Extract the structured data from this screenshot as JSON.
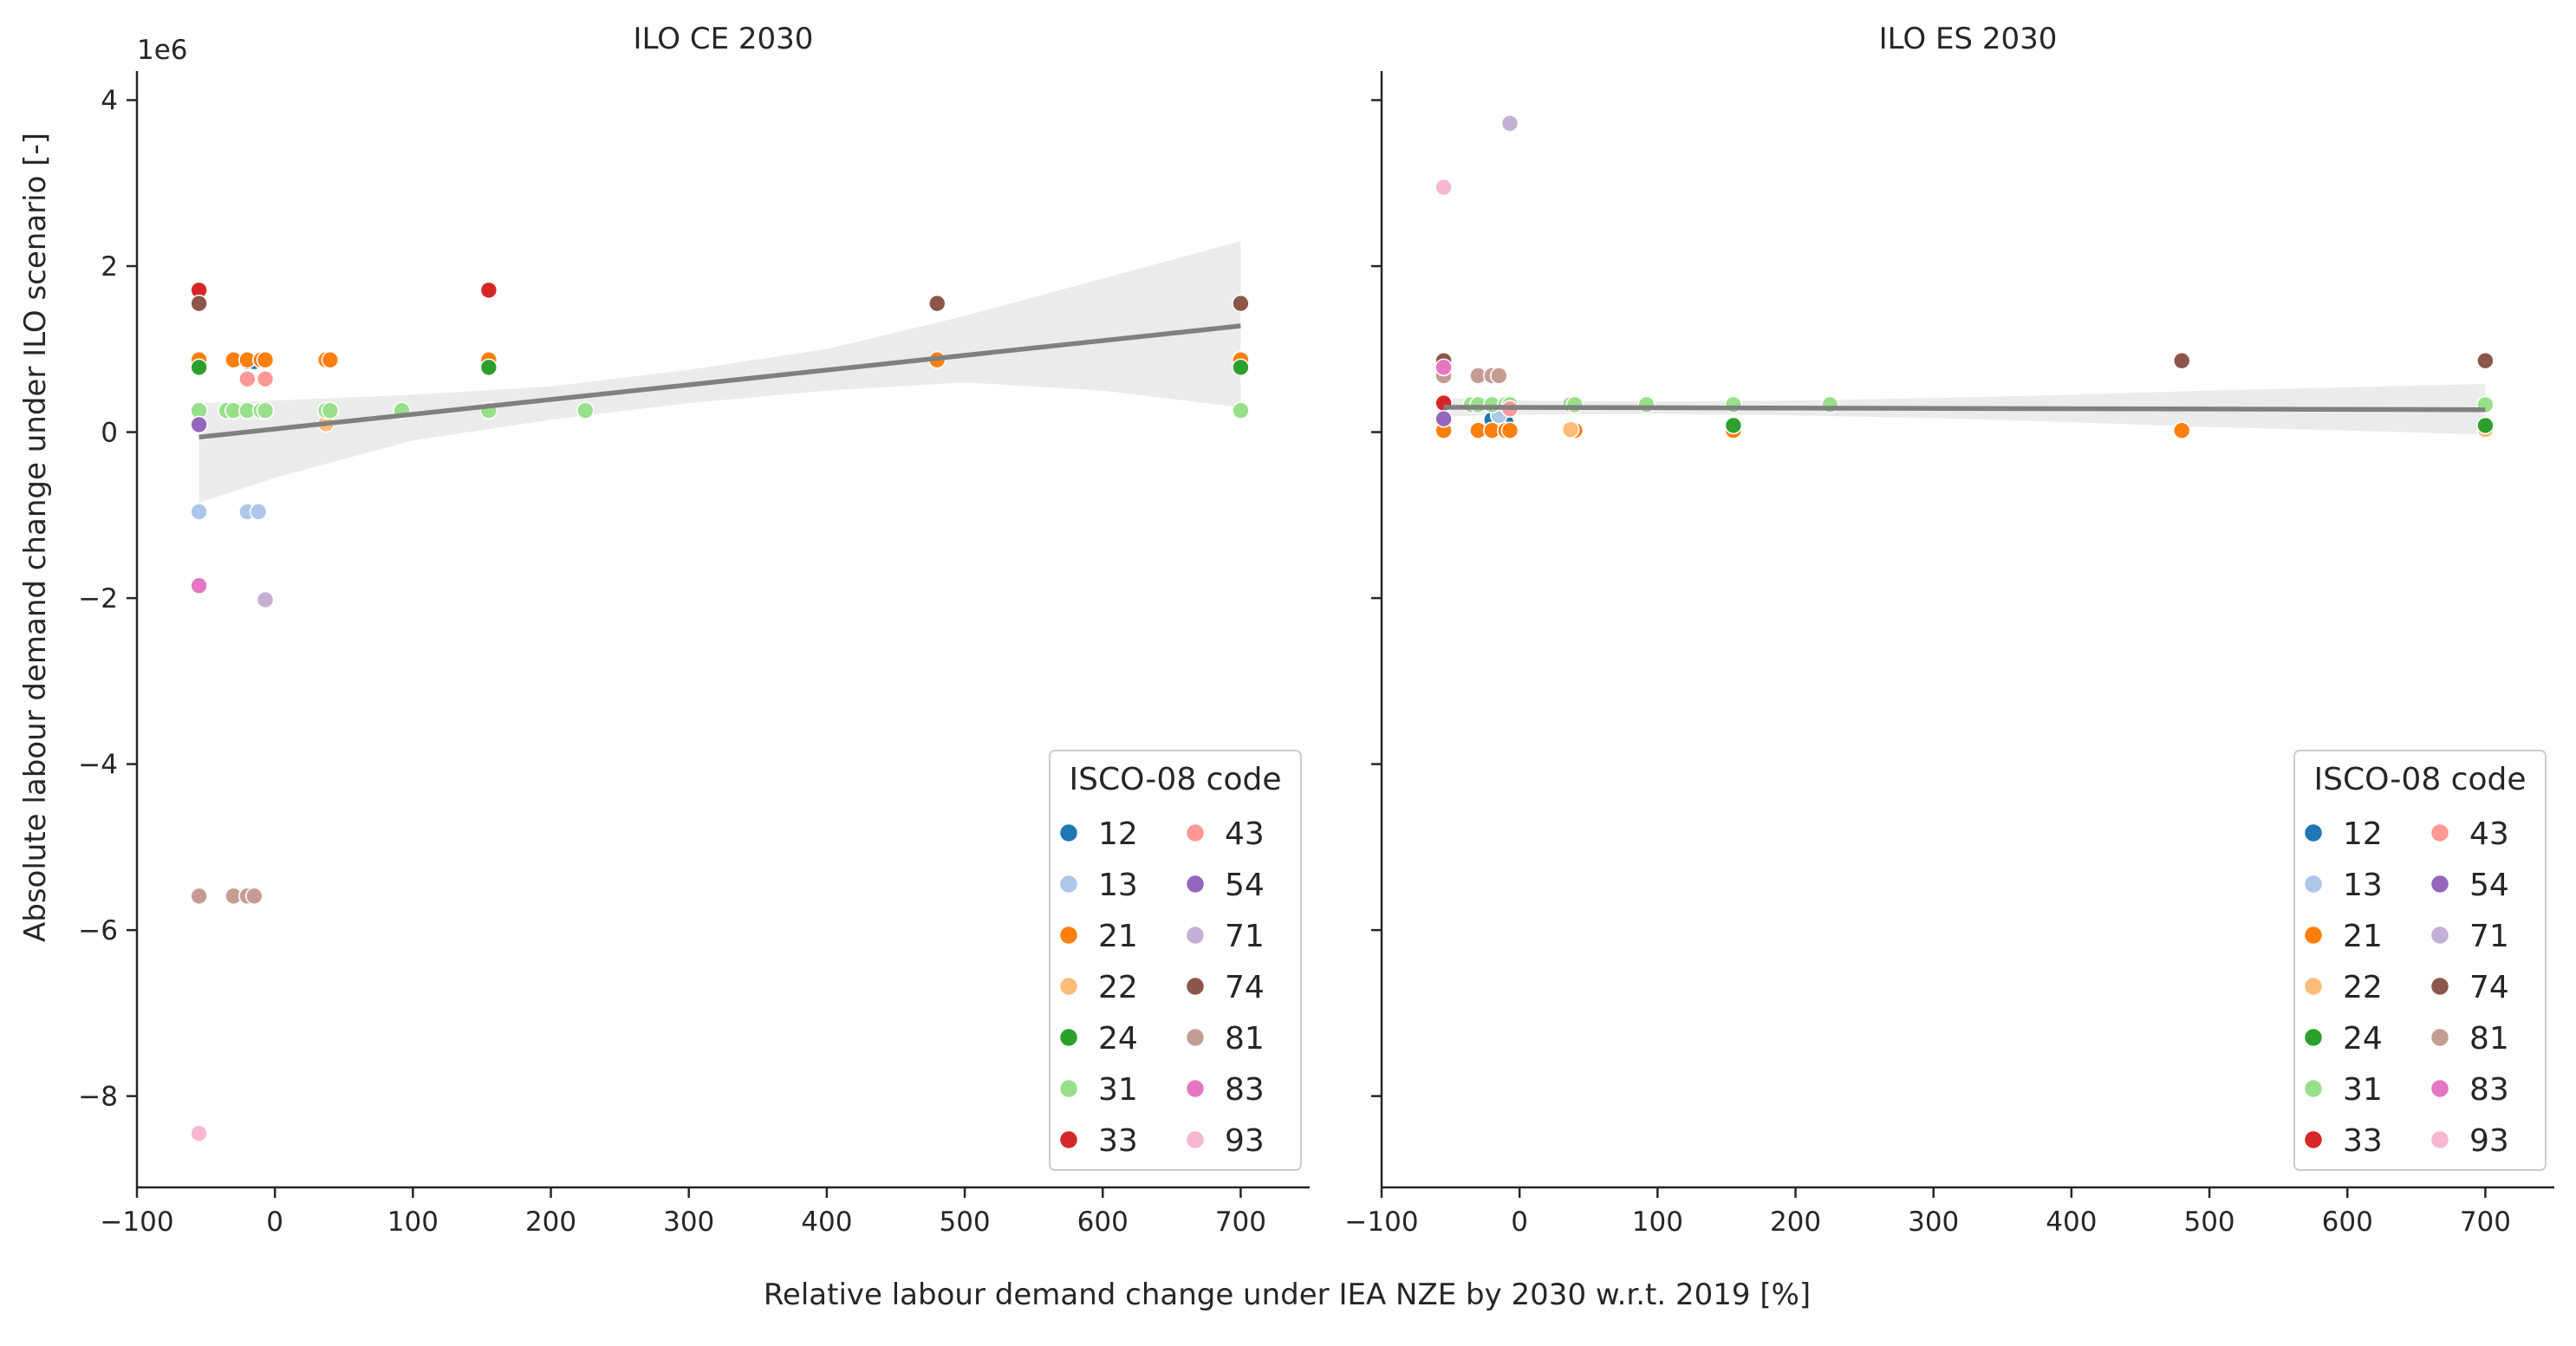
{
  "figure": {
    "xlabel": "Relative labour demand change under IEA NZE by 2030 w.r.t. 2019 [%]",
    "ylabel": "Absolute labour demand change under ILO scenario [-]",
    "y_offset_label": "1e6"
  },
  "colors": {
    "12": "#1f77b4",
    "13": "#aec7e8",
    "21": "#ff7f0e",
    "22": "#ffbb78",
    "24": "#2ca02c",
    "31": "#98df8a",
    "33": "#d62728",
    "43": "#ff9896",
    "54": "#9467bd",
    "71": "#c5b0d5",
    "74": "#8c564b",
    "81": "#c49c94",
    "83": "#e377c2",
    "93": "#f7b6d2",
    "regression": "#808080",
    "ci_band": "#ebebeb"
  },
  "chart_data": [
    {
      "type": "scatter",
      "title": "ILO CE 2030",
      "xlim": [
        -100,
        750
      ],
      "ylim": [
        -9.1,
        4.35
      ],
      "y_scale": "1e6",
      "xticks": [
        -100,
        0,
        100,
        200,
        300,
        400,
        500,
        600,
        700
      ],
      "yticks": [
        -8,
        -6,
        -4,
        -2,
        0,
        2,
        4
      ],
      "grid": false,
      "legend": {
        "title": "ISCO-08 code",
        "placement": "lower-right",
        "columns": [
          [
            "12",
            "13",
            "21",
            "22",
            "24",
            "31",
            "33"
          ],
          [
            "43",
            "54",
            "71",
            "74",
            "81",
            "83",
            "93"
          ]
        ]
      },
      "regression": {
        "x": [
          -55,
          700
        ],
        "y": [
          -0.06,
          1.28
        ]
      },
      "ci_band": {
        "x": [
          -55,
          0,
          100,
          200,
          300,
          400,
          500,
          600,
          700
        ],
        "lower": [
          -0.85,
          -0.55,
          -0.1,
          0.15,
          0.35,
          0.5,
          0.6,
          0.5,
          0.3
        ],
        "upper": [
          0.35,
          0.38,
          0.45,
          0.55,
          0.75,
          1.0,
          1.4,
          1.85,
          2.3
        ]
      },
      "series": [
        {
          "name": "12",
          "points": [
            [
              -20,
              0.85
            ],
            [
              -15,
              0.85
            ]
          ]
        },
        {
          "name": "13",
          "points": [
            [
              -55,
              -0.96
            ],
            [
              -20,
              -0.96
            ],
            [
              -12,
              -0.96
            ]
          ]
        },
        {
          "name": "21",
          "points": [
            [
              -55,
              0.87
            ],
            [
              -30,
              0.87
            ],
            [
              -20,
              0.87
            ],
            [
              -10,
              0.87
            ],
            [
              -7,
              0.87
            ],
            [
              37,
              0.87
            ],
            [
              40,
              0.87
            ],
            [
              155,
              0.87
            ],
            [
              480,
              0.87
            ],
            [
              700,
              0.87
            ]
          ]
        },
        {
          "name": "22",
          "points": [
            [
              37,
              0.1
            ]
          ]
        },
        {
          "name": "24",
          "points": [
            [
              -55,
              0.78
            ],
            [
              155,
              0.78
            ],
            [
              700,
              0.78
            ]
          ]
        },
        {
          "name": "31",
          "points": [
            [
              -55,
              0.26
            ],
            [
              -35,
              0.26
            ],
            [
              -30,
              0.26
            ],
            [
              -20,
              0.26
            ],
            [
              -10,
              0.26
            ],
            [
              -7,
              0.26
            ],
            [
              37,
              0.26
            ],
            [
              40,
              0.26
            ],
            [
              92,
              0.26
            ],
            [
              155,
              0.26
            ],
            [
              225,
              0.26
            ],
            [
              700,
              0.26
            ]
          ]
        },
        {
          "name": "33",
          "points": [
            [
              -55,
              1.71
            ],
            [
              155,
              1.71
            ]
          ]
        },
        {
          "name": "43",
          "points": [
            [
              -20,
              0.64
            ],
            [
              -7,
              0.64
            ]
          ]
        },
        {
          "name": "54",
          "points": [
            [
              -55,
              0.09
            ]
          ]
        },
        {
          "name": "71",
          "points": [
            [
              -7,
              -2.02
            ]
          ]
        },
        {
          "name": "74",
          "points": [
            [
              -55,
              1.55
            ],
            [
              480,
              1.55
            ],
            [
              700,
              1.55
            ]
          ]
        },
        {
          "name": "81",
          "points": [
            [
              -55,
              -5.59
            ],
            [
              -30,
              -5.59
            ],
            [
              -20,
              -5.59
            ],
            [
              -15,
              -5.59
            ]
          ]
        },
        {
          "name": "83",
          "points": [
            [
              -55,
              -1.85
            ]
          ]
        },
        {
          "name": "93",
          "points": [
            [
              -55,
              -8.45
            ]
          ]
        }
      ]
    },
    {
      "type": "scatter",
      "title": "ILO ES 2030",
      "xlim": [
        -100,
        750
      ],
      "ylim": [
        -9.1,
        4.35
      ],
      "y_scale": "1e6",
      "xticks": [
        -100,
        0,
        100,
        200,
        300,
        400,
        500,
        600,
        700
      ],
      "yticks": [
        -8,
        -6,
        -4,
        -2,
        0,
        2,
        4
      ],
      "grid": false,
      "legend": {
        "title": "ISCO-08 code",
        "placement": "lower-right",
        "columns": [
          [
            "12",
            "13",
            "21",
            "22",
            "24",
            "31",
            "33"
          ],
          [
            "43",
            "54",
            "71",
            "74",
            "81",
            "83",
            "93"
          ]
        ]
      },
      "regression": {
        "x": [
          -55,
          700
        ],
        "y": [
          0.3,
          0.27
        ]
      },
      "ci_band": {
        "x": [
          -55,
          0,
          100,
          200,
          300,
          400,
          500,
          600,
          700
        ],
        "lower": [
          0.19,
          0.21,
          0.22,
          0.2,
          0.17,
          0.12,
          0.06,
          0.02,
          -0.03
        ],
        "upper": [
          0.41,
          0.38,
          0.37,
          0.38,
          0.41,
          0.45,
          0.5,
          0.54,
          0.58
        ]
      },
      "series": [
        {
          "name": "12",
          "points": [
            [
              -20,
              0.15
            ],
            [
              -10,
              0.12
            ]
          ]
        },
        {
          "name": "13",
          "points": [
            [
              -15,
              0.2
            ]
          ]
        },
        {
          "name": "21",
          "points": [
            [
              -55,
              0.02
            ],
            [
              -30,
              0.02
            ],
            [
              -20,
              0.02
            ],
            [
              -10,
              0.02
            ],
            [
              -7,
              0.02
            ],
            [
              40,
              0.02
            ],
            [
              155,
              0.02
            ],
            [
              480,
              0.02
            ],
            [
              700,
              0.02
            ]
          ]
        },
        {
          "name": "22",
          "points": [
            [
              37,
              0.03
            ],
            [
              700,
              0.03
            ]
          ]
        },
        {
          "name": "24",
          "points": [
            [
              155,
              0.08
            ],
            [
              700,
              0.08
            ]
          ]
        },
        {
          "name": "31",
          "points": [
            [
              -55,
              0.33
            ],
            [
              -35,
              0.33
            ],
            [
              -30,
              0.33
            ],
            [
              -20,
              0.33
            ],
            [
              -10,
              0.33
            ],
            [
              -7,
              0.33
            ],
            [
              37,
              0.33
            ],
            [
              40,
              0.33
            ],
            [
              92,
              0.33
            ],
            [
              155,
              0.33
            ],
            [
              225,
              0.33
            ],
            [
              700,
              0.33
            ]
          ]
        },
        {
          "name": "33",
          "points": [
            [
              -55,
              0.35
            ]
          ]
        },
        {
          "name": "43",
          "points": [
            [
              -7,
              0.28
            ]
          ]
        },
        {
          "name": "54",
          "points": [
            [
              -55,
              0.16
            ]
          ]
        },
        {
          "name": "71",
          "points": [
            [
              -7,
              3.72
            ]
          ]
        },
        {
          "name": "74",
          "points": [
            [
              -55,
              0.86
            ],
            [
              480,
              0.86
            ],
            [
              700,
              0.86
            ]
          ]
        },
        {
          "name": "81",
          "points": [
            [
              -55,
              0.68
            ],
            [
              -30,
              0.68
            ],
            [
              -20,
              0.68
            ],
            [
              -15,
              0.68
            ]
          ]
        },
        {
          "name": "83",
          "points": [
            [
              -55,
              0.78
            ]
          ]
        },
        {
          "name": "93",
          "points": [
            [
              -55,
              2.95
            ]
          ]
        }
      ]
    }
  ]
}
